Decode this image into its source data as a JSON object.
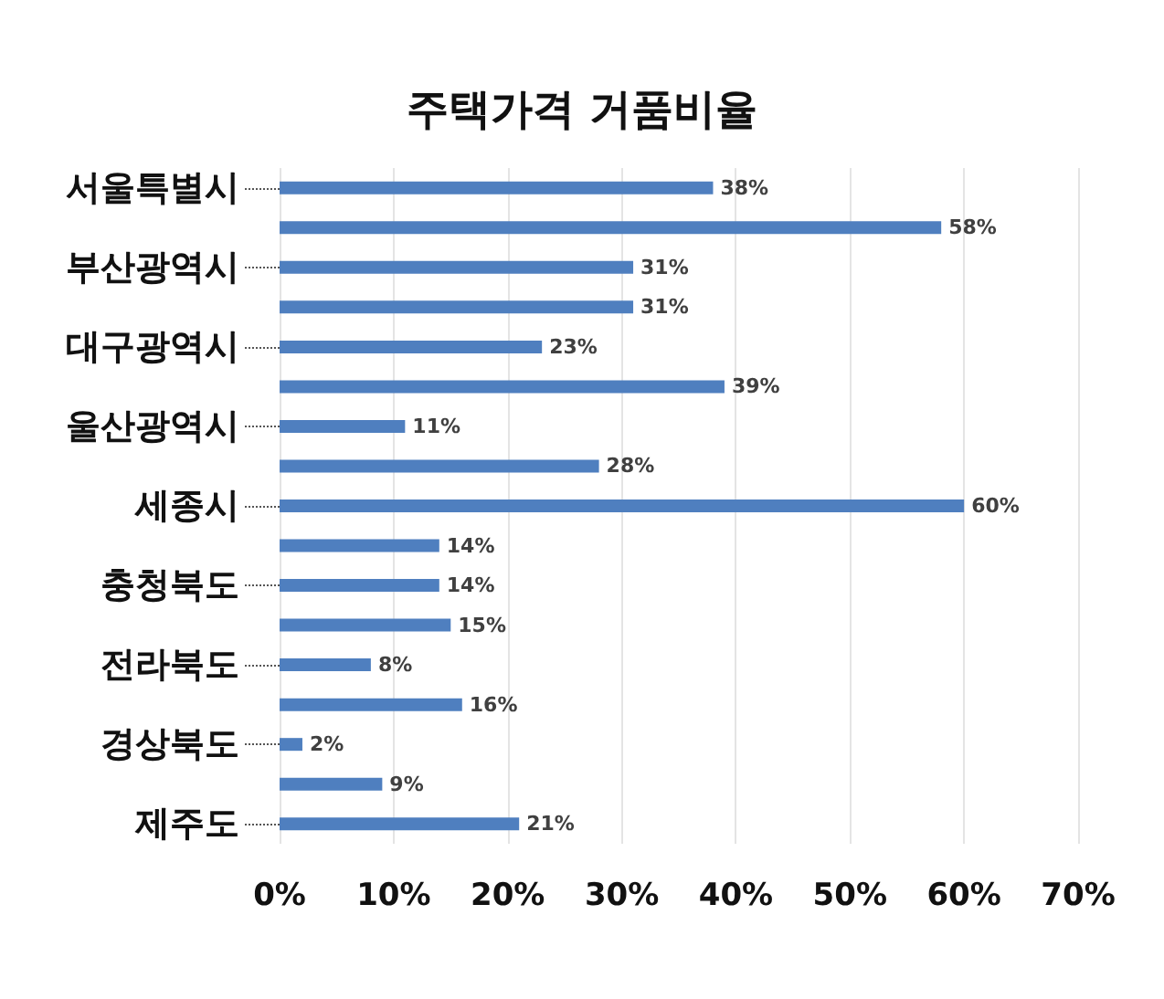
{
  "chart_data": {
    "type": "bar",
    "orientation": "horizontal",
    "title": "주택가격 거품비율",
    "categories": [
      "서울특별시",
      null,
      "부산광역시",
      null,
      "대구광역시",
      null,
      "울산광역시",
      null,
      "세종시",
      null,
      "충청북도",
      null,
      "전라북도",
      null,
      "경상북도",
      null,
      "제주도"
    ],
    "values": [
      38,
      58,
      31,
      31,
      23,
      39,
      11,
      28,
      60,
      14,
      14,
      15,
      8,
      16,
      2,
      9,
      21
    ],
    "value_labels": [
      "38%",
      "58%",
      "31%",
      "31%",
      "23%",
      "39%",
      "11%",
      "28%",
      "60%",
      "14%",
      "14%",
      "15%",
      "8%",
      "16%",
      "2%",
      "9%",
      "21%"
    ],
    "color": "#4f7fbf",
    "xlim": [
      0,
      70
    ],
    "xticks": [
      {
        "value": 0,
        "label": "0%"
      },
      {
        "value": 10,
        "label": "10%"
      },
      {
        "value": 20,
        "label": "20%"
      },
      {
        "value": 30,
        "label": "30%"
      },
      {
        "value": 40,
        "label": "40%"
      },
      {
        "value": 50,
        "label": "50%"
      },
      {
        "value": 60,
        "label": "60%"
      },
      {
        "value": 70,
        "label": "70%"
      }
    ],
    "grid": "x"
  }
}
